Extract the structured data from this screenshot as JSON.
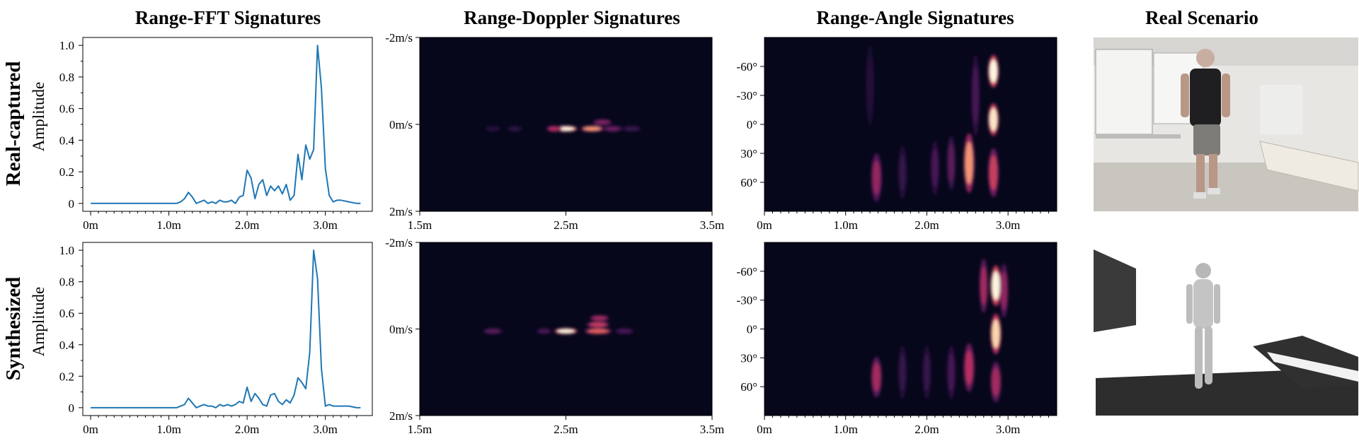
{
  "column_titles": [
    "Range-FFT Signatures",
    "Range-Doppler Signatures",
    "Range-Angle Signatures",
    "Real Scenario"
  ],
  "row_labels": [
    "Real-captured",
    "Synthesized"
  ],
  "chart_data": [
    {
      "type": "line",
      "panel": "range-fft-real",
      "ylabel": "Amplitude",
      "xlim": [
        -0.1,
        3.6
      ],
      "ylim": [
        -0.05,
        1.05
      ],
      "x_ticks": [
        0,
        1,
        2,
        3
      ],
      "x_tick_labels": [
        "0m",
        "1.0m",
        "2.0m",
        "3.0m"
      ],
      "y_ticks": [
        0,
        0.2,
        0.4,
        0.6,
        0.8,
        1.0
      ],
      "y_tick_labels": [
        "0",
        "0.2",
        "0.4",
        "0.6",
        "0.8",
        "1.0"
      ],
      "color": "#1f77b4",
      "x": [
        0,
        0.1,
        0.2,
        0.3,
        0.4,
        0.5,
        0.6,
        0.7,
        0.8,
        0.9,
        1.0,
        1.1,
        1.15,
        1.2,
        1.25,
        1.3,
        1.35,
        1.4,
        1.45,
        1.5,
        1.55,
        1.6,
        1.65,
        1.7,
        1.75,
        1.8,
        1.85,
        1.9,
        1.95,
        2.0,
        2.05,
        2.1,
        2.15,
        2.2,
        2.25,
        2.3,
        2.35,
        2.4,
        2.45,
        2.5,
        2.55,
        2.6,
        2.65,
        2.7,
        2.75,
        2.8,
        2.85,
        2.9,
        2.95,
        3.0,
        3.05,
        3.1,
        3.15,
        3.2,
        3.3,
        3.4,
        3.45
      ],
      "y": [
        0,
        0,
        0,
        0,
        0,
        0,
        0,
        0,
        0,
        0,
        0,
        0,
        0.01,
        0.03,
        0.07,
        0.04,
        0.0,
        0.01,
        0.02,
        0.0,
        0.01,
        0.0,
        0.02,
        0.01,
        0.01,
        0.02,
        0.0,
        0.04,
        0.05,
        0.21,
        0.16,
        0.03,
        0.12,
        0.15,
        0.05,
        0.11,
        0.08,
        0.11,
        0.06,
        0.12,
        0.02,
        0.05,
        0.31,
        0.15,
        0.37,
        0.28,
        0.34,
        1.0,
        0.73,
        0.22,
        0.05,
        0.01,
        0.02,
        0.02,
        0.01,
        0.0,
        0.0
      ]
    },
    {
      "type": "line",
      "panel": "range-fft-synth",
      "ylabel": "Amplitude",
      "xlim": [
        -0.1,
        3.6
      ],
      "ylim": [
        -0.05,
        1.05
      ],
      "x_ticks": [
        0,
        1,
        2,
        3
      ],
      "x_tick_labels": [
        "0m",
        "1.0m",
        "2.0m",
        "3.0m"
      ],
      "y_ticks": [
        0,
        0.2,
        0.4,
        0.6,
        0.8,
        1.0
      ],
      "y_tick_labels": [
        "0",
        "0.2",
        "0.4",
        "0.6",
        "0.8",
        "1.0"
      ],
      "color": "#1f77b4",
      "x": [
        0,
        0.1,
        0.2,
        0.3,
        0.4,
        0.5,
        0.6,
        0.7,
        0.8,
        0.9,
        1.0,
        1.1,
        1.15,
        1.2,
        1.25,
        1.3,
        1.35,
        1.4,
        1.45,
        1.5,
        1.55,
        1.6,
        1.65,
        1.7,
        1.75,
        1.8,
        1.85,
        1.9,
        1.95,
        2.0,
        2.05,
        2.1,
        2.15,
        2.2,
        2.25,
        2.3,
        2.35,
        2.4,
        2.45,
        2.5,
        2.55,
        2.6,
        2.65,
        2.7,
        2.75,
        2.8,
        2.85,
        2.9,
        2.95,
        3.0,
        3.05,
        3.1,
        3.2,
        3.3,
        3.4,
        3.45
      ],
      "y": [
        0,
        0,
        0,
        0,
        0,
        0,
        0,
        0,
        0,
        0,
        0,
        0,
        0.01,
        0.02,
        0.06,
        0.03,
        0.0,
        0.01,
        0.02,
        0.01,
        0.01,
        0.0,
        0.02,
        0.01,
        0.02,
        0.01,
        0.02,
        0.04,
        0.03,
        0.13,
        0.04,
        0.09,
        0.06,
        0.02,
        0.01,
        0.08,
        0.09,
        0.04,
        0.02,
        0.05,
        0.03,
        0.08,
        0.19,
        0.16,
        0.12,
        0.35,
        1.0,
        0.82,
        0.25,
        0.01,
        0.02,
        0.01,
        0.01,
        0.01,
        0.0,
        0.0
      ]
    },
    {
      "type": "heatmap",
      "panel": "range-doppler-real",
      "xlim": [
        1.5,
        3.5
      ],
      "ylim": [
        -2,
        2
      ],
      "x_tick_labels": [
        "1.5m",
        "2.5m",
        "3.5m"
      ],
      "y_tick_labels": [
        "-2m/s",
        "0m/s",
        "2m/s"
      ],
      "blobs": [
        {
          "x": 2.0,
          "y": 0.1,
          "w": 0.04,
          "h": 0.05,
          "v": 0.1
        },
        {
          "x": 2.15,
          "y": 0.1,
          "w": 0.04,
          "h": 0.05,
          "v": 0.12
        },
        {
          "x": 2.5,
          "y": 0.1,
          "w": 0.06,
          "h": 0.05,
          "v": 1.0
        },
        {
          "x": 2.42,
          "y": 0.1,
          "w": 0.04,
          "h": 0.05,
          "v": 0.5
        },
        {
          "x": 2.68,
          "y": 0.1,
          "w": 0.06,
          "h": 0.05,
          "v": 0.75
        },
        {
          "x": 2.75,
          "y": -0.05,
          "w": 0.05,
          "h": 0.05,
          "v": 0.35
        },
        {
          "x": 2.82,
          "y": 0.1,
          "w": 0.05,
          "h": 0.05,
          "v": 0.3
        },
        {
          "x": 2.95,
          "y": 0.1,
          "w": 0.05,
          "h": 0.05,
          "v": 0.15
        }
      ]
    },
    {
      "type": "heatmap",
      "panel": "range-doppler-synth",
      "xlim": [
        1.5,
        3.5
      ],
      "ylim": [
        -2,
        2
      ],
      "x_tick_labels": [
        "1.5m",
        "2.5m",
        "3.5m"
      ],
      "y_tick_labels": [
        "-2m/s",
        "0m/s",
        "2m/s"
      ],
      "blobs": [
        {
          "x": 2.0,
          "y": 0.05,
          "w": 0.05,
          "h": 0.05,
          "v": 0.25
        },
        {
          "x": 2.35,
          "y": 0.05,
          "w": 0.04,
          "h": 0.05,
          "v": 0.2
        },
        {
          "x": 2.5,
          "y": 0.05,
          "w": 0.06,
          "h": 0.05,
          "v": 1.0
        },
        {
          "x": 2.72,
          "y": 0.05,
          "w": 0.07,
          "h": 0.05,
          "v": 0.65
        },
        {
          "x": 2.72,
          "y": -0.1,
          "w": 0.06,
          "h": 0.05,
          "v": 0.55
        },
        {
          "x": 2.73,
          "y": -0.25,
          "w": 0.05,
          "h": 0.05,
          "v": 0.45
        },
        {
          "x": 2.9,
          "y": 0.05,
          "w": 0.05,
          "h": 0.05,
          "v": 0.2
        }
      ]
    },
    {
      "type": "heatmap",
      "panel": "range-angle-real",
      "xlim": [
        0,
        3.6
      ],
      "ylim": [
        -90,
        90
      ],
      "x_ticks": [
        0,
        1,
        2,
        3
      ],
      "x_tick_labels": [
        "0m",
        "1.0m",
        "2.0m",
        "3.0m"
      ],
      "y_ticks": [
        -60,
        -30,
        0,
        30,
        60
      ],
      "y_tick_labels": [
        "-60°",
        "-30°",
        "0°",
        "30°",
        "60°"
      ],
      "blobs": [
        {
          "x": 2.82,
          "y": -55,
          "w": 0.05,
          "h": 12,
          "v": 1.0
        },
        {
          "x": 2.82,
          "y": -5,
          "w": 0.05,
          "h": 12,
          "v": 0.95
        },
        {
          "x": 2.82,
          "y": 50,
          "w": 0.05,
          "h": 18,
          "v": 0.55
        },
        {
          "x": 2.52,
          "y": 40,
          "w": 0.05,
          "h": 22,
          "v": 0.75
        },
        {
          "x": 1.38,
          "y": 55,
          "w": 0.05,
          "h": 18,
          "v": 0.4
        },
        {
          "x": 2.6,
          "y": -30,
          "w": 0.04,
          "h": 30,
          "v": 0.2
        },
        {
          "x": 2.3,
          "y": 40,
          "w": 0.04,
          "h": 20,
          "v": 0.25
        },
        {
          "x": 2.1,
          "y": 45,
          "w": 0.04,
          "h": 20,
          "v": 0.2
        },
        {
          "x": 1.7,
          "y": 50,
          "w": 0.04,
          "h": 20,
          "v": 0.15
        },
        {
          "x": 1.3,
          "y": -40,
          "w": 0.04,
          "h": 30,
          "v": 0.1
        }
      ]
    },
    {
      "type": "heatmap",
      "panel": "range-angle-synth",
      "xlim": [
        0,
        3.6
      ],
      "ylim": [
        -90,
        90
      ],
      "x_ticks": [
        0,
        1,
        2,
        3
      ],
      "x_tick_labels": [
        "0m",
        "1.0m",
        "2.0m",
        "3.0m"
      ],
      "y_ticks": [
        -60,
        -30,
        0,
        30,
        60
      ],
      "y_tick_labels": [
        "-60°",
        "-30°",
        "0°",
        "30°",
        "60°"
      ],
      "blobs": [
        {
          "x": 2.85,
          "y": -45,
          "w": 0.05,
          "h": 15,
          "v": 1.0
        },
        {
          "x": 2.85,
          "y": 5,
          "w": 0.05,
          "h": 15,
          "v": 0.9
        },
        {
          "x": 2.85,
          "y": 55,
          "w": 0.05,
          "h": 15,
          "v": 0.45
        },
        {
          "x": 2.7,
          "y": -45,
          "w": 0.04,
          "h": 20,
          "v": 0.45
        },
        {
          "x": 2.95,
          "y": -40,
          "w": 0.04,
          "h": 20,
          "v": 0.4
        },
        {
          "x": 2.52,
          "y": 40,
          "w": 0.05,
          "h": 18,
          "v": 0.5
        },
        {
          "x": 1.38,
          "y": 50,
          "w": 0.05,
          "h": 15,
          "v": 0.45
        },
        {
          "x": 2.3,
          "y": 45,
          "w": 0.04,
          "h": 20,
          "v": 0.2
        },
        {
          "x": 2.0,
          "y": 45,
          "w": 0.04,
          "h": 20,
          "v": 0.15
        },
        {
          "x": 1.7,
          "y": 45,
          "w": 0.04,
          "h": 20,
          "v": 0.15
        }
      ]
    }
  ],
  "images": [
    {
      "name": "real-scenario-photo",
      "depicts": "camera photo of a person walking in an indoor lab"
    },
    {
      "name": "synthesized-scene-render",
      "depicts": "3D render of a human body model over a point-cloud floor"
    }
  ],
  "colors": {
    "line": "#1f77b4",
    "heatmap_bg": "#07071c",
    "colormap": [
      "#07071c",
      "#3a1650",
      "#7a1f62",
      "#b52f5e",
      "#e9685a",
      "#f9c08d",
      "#fdf4e0"
    ]
  }
}
